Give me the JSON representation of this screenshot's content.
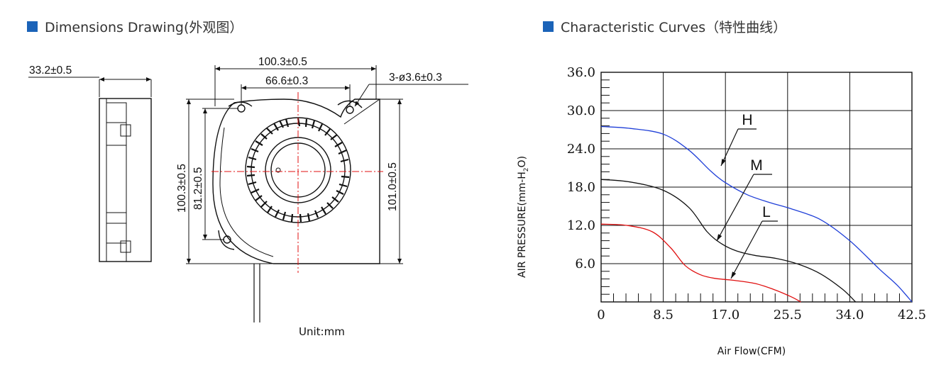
{
  "dimensions_section": {
    "title": "Dimensions Drawing(外观图）",
    "labels": {
      "thickness": "33.2±0.5",
      "width": "100.3±0.5",
      "hole_spacing_h": "66.6±0.3",
      "holes": "3-ø3.6±0.3",
      "height_left": "100.3±0.5",
      "hole_spacing_v": "81.2±0.5",
      "height_right": "101.0±0.5"
    },
    "unit": "Unit:mm"
  },
  "curves_section": {
    "title": "Characteristic Curves（特性曲线）"
  },
  "colors": {
    "accent": "#1b63b8",
    "curve_h": "#1f3fd8",
    "curve_m": "#111111",
    "curve_l": "#e01010"
  },
  "chart_data": {
    "type": "line",
    "title": "",
    "xlabel": "Air Flow(CFM)",
    "ylabel": "AIR PRESSURE(mm-H2O)",
    "xlim": [
      0,
      42.5
    ],
    "ylim": [
      0,
      36.0
    ],
    "x_ticks": [
      "0",
      "8.5",
      "17.0",
      "25.5",
      "34.0",
      "42.5"
    ],
    "y_ticks": [
      "6.0",
      "12.0",
      "18.0",
      "24.0",
      "30.0",
      "36.0"
    ],
    "grid": true,
    "series": [
      {
        "name": "H",
        "x": [
          0,
          4,
          8.5,
          12,
          15,
          17,
          20,
          23,
          26,
          30,
          34,
          38,
          40.5,
          42.5
        ],
        "y": [
          27.5,
          27.2,
          26.3,
          23.8,
          20.5,
          18.7,
          16.8,
          15.6,
          14.6,
          12.9,
          9.6,
          5.2,
          2.6,
          0
        ]
      },
      {
        "name": "M",
        "x": [
          0,
          4,
          8.5,
          12,
          14.5,
          16.5,
          18.5,
          21,
          24,
          27,
          30,
          33,
          34.8
        ],
        "y": [
          19.2,
          18.8,
          17.5,
          14.8,
          11.0,
          9.1,
          8.0,
          7.3,
          6.8,
          5.9,
          4.4,
          2.0,
          0
        ]
      },
      {
        "name": "L",
        "x": [
          0,
          3.5,
          7,
          9.5,
          11.5,
          13.5,
          15.5,
          18,
          21,
          23.5,
          26,
          27.3
        ],
        "y": [
          12.2,
          12.0,
          11.0,
          8.5,
          5.7,
          4.3,
          3.7,
          3.4,
          2.9,
          2.0,
          0.8,
          0
        ]
      }
    ]
  }
}
